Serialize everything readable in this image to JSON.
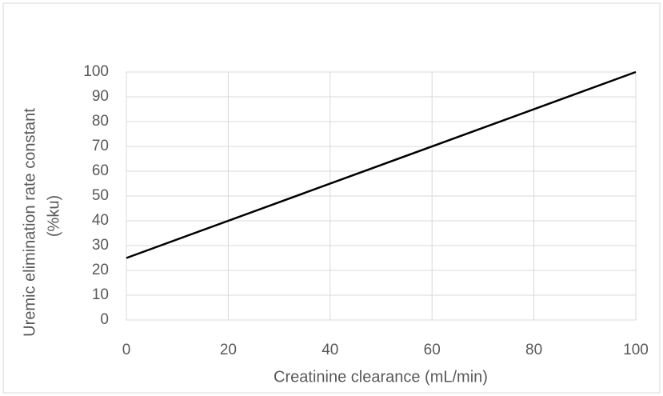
{
  "chart_data": {
    "type": "line",
    "x_label": "Creatinine clearance (mL/min)",
    "y_label": [
      "Uremic elimination rate constant",
      "(%ku)"
    ],
    "x": [
      0,
      100
    ],
    "series": [
      {
        "name": "Uremic elimination rate constant",
        "color": "#000000",
        "values": [
          25,
          100
        ]
      }
    ],
    "xlim": [
      0,
      100
    ],
    "xticks": [
      0,
      20,
      40,
      60,
      80,
      100
    ],
    "ylim": [
      0,
      100
    ],
    "yticks": [
      0,
      10,
      20,
      30,
      40,
      50,
      60,
      70,
      80,
      90,
      100
    ],
    "grid": true
  }
}
